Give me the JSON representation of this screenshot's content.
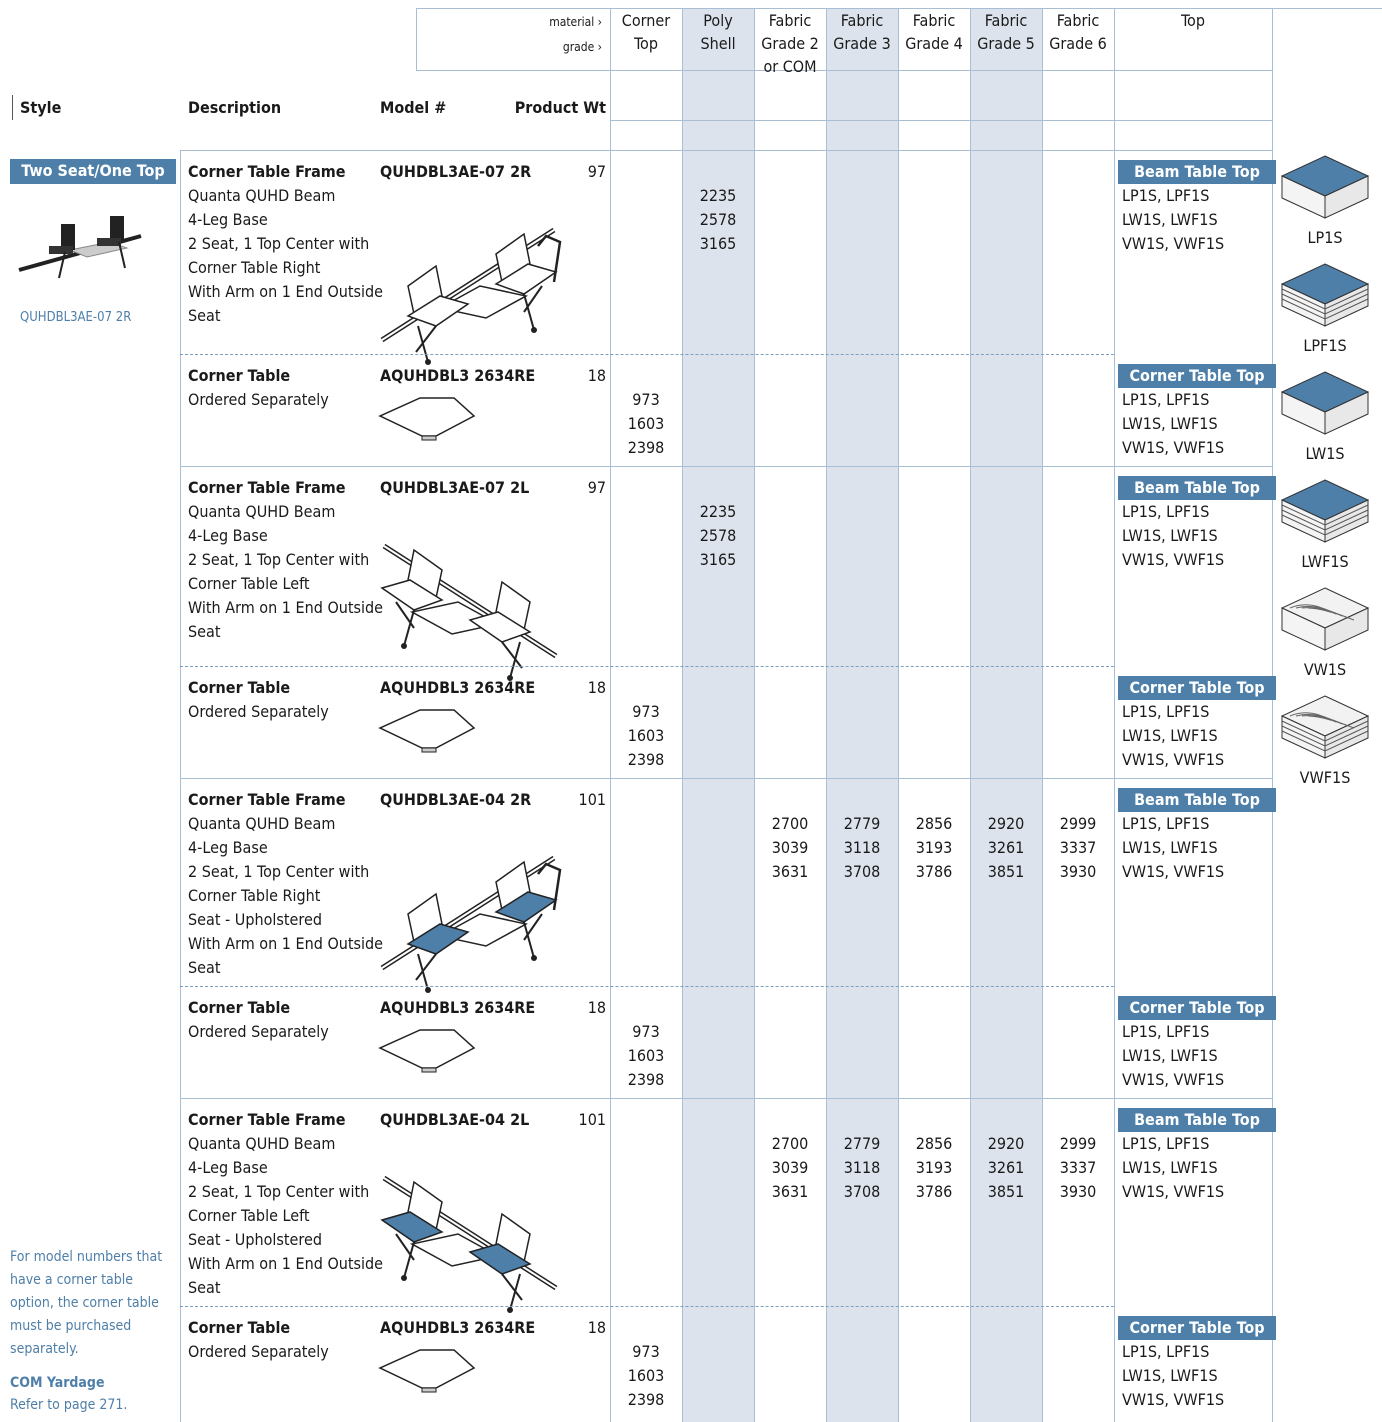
{
  "header": {
    "material_label": "material ›",
    "grade_label": "grade ›",
    "columns": [
      "Corner Top",
      "Poly Shell",
      "Fabric Grade 2 or COM",
      "Fabric Grade 3",
      "Fabric Grade 4",
      "Fabric Grade 5",
      "Fabric Grade 6",
      "Top"
    ]
  },
  "table": {
    "headings": [
      "Style",
      "Description",
      "Model #",
      "Product Wt"
    ],
    "rows": [
      {
        "title": "Corner Table Frame",
        "model": "QUHDBL3AE-07 2R",
        "weight": 97,
        "lines": [
          "Quanta QUHD Beam",
          "4-Leg Base",
          "2 Seat, 1 Top Center with",
          "Corner Table Right",
          "With Arm on 1 End Outside",
          "Seat"
        ],
        "prices": [
          null,
          [
            2235,
            2578,
            3165
          ],
          null,
          null,
          null,
          null,
          null
        ],
        "top_label": "Beam Table Top",
        "top_options": [
          "LP1S, LPF1S",
          "LW1S, LWF1S",
          "VW1S, VWF1S"
        ]
      },
      {
        "title": "Corner Table",
        "model": "AQUHDBL3 2634RE",
        "weight": 18,
        "lines": [
          "Ordered Separately"
        ],
        "prices": [
          [
            973,
            1603,
            2398
          ],
          null,
          null,
          null,
          null,
          null,
          null
        ],
        "top_label": "Corner Table Top",
        "top_options": [
          "LP1S, LPF1S",
          "LW1S, LWF1S",
          "VW1S, VWF1S"
        ]
      },
      {
        "title": "Corner Table Frame",
        "model": "QUHDBL3AE-07 2L",
        "weight": 97,
        "lines": [
          "Quanta QUHD Beam",
          "4-Leg Base",
          "2 Seat, 1 Top Center with",
          "Corner Table Left",
          "With Arm on 1 End Outside",
          "Seat"
        ],
        "prices": [
          null,
          [
            2235,
            2578,
            3165
          ],
          null,
          null,
          null,
          null,
          null
        ],
        "top_label": "Beam Table Top",
        "top_options": [
          "LP1S, LPF1S",
          "LW1S, LWF1S",
          "VW1S, VWF1S"
        ]
      },
      {
        "title": "Corner Table",
        "model": "AQUHDBL3 2634RE",
        "weight": 18,
        "lines": [
          "Ordered Separately"
        ],
        "prices": [
          [
            973,
            1603,
            2398
          ],
          null,
          null,
          null,
          null,
          null,
          null
        ],
        "top_label": "Corner Table Top",
        "top_options": [
          "LP1S, LPF1S",
          "LW1S, LWF1S",
          "VW1S, VWF1S"
        ]
      },
      {
        "title": "Corner Table Frame",
        "model": "QUHDBL3AE-04 2R",
        "weight": 101,
        "lines": [
          "Quanta QUHD Beam",
          "4-Leg Base",
          "2 Seat, 1 Top Center with",
          "Corner Table Right",
          "Seat - Upholstered",
          "With Arm on 1 End Outside",
          "Seat"
        ],
        "prices": [
          null,
          null,
          [
            2700,
            3039,
            3631
          ],
          [
            2779,
            3118,
            3708
          ],
          [
            2856,
            3193,
            3786
          ],
          [
            2920,
            3261,
            3851
          ],
          [
            2999,
            3337,
            3930
          ]
        ],
        "top_label": "Beam Table Top",
        "top_options": [
          "LP1S, LPF1S",
          "LW1S, LWF1S",
          "VW1S, VWF1S"
        ]
      },
      {
        "title": "Corner Table",
        "model": "AQUHDBL3 2634RE",
        "weight": 18,
        "lines": [
          "Ordered Separately"
        ],
        "prices": [
          [
            973,
            1603,
            2398
          ],
          null,
          null,
          null,
          null,
          null,
          null
        ],
        "top_label": "Corner Table Top",
        "top_options": [
          "LP1S, LPF1S",
          "LW1S, LWF1S",
          "VW1S, VWF1S"
        ]
      },
      {
        "title": "Corner Table Frame",
        "model": "QUHDBL3AE-04 2L",
        "weight": 101,
        "lines": [
          "Quanta QUHD Beam",
          "4-Leg Base",
          "2 Seat, 1 Top Center with",
          "Corner Table Left",
          "Seat - Upholstered",
          "With Arm on 1 End Outside",
          "Seat"
        ],
        "prices": [
          null,
          null,
          [
            2700,
            3039,
            3631
          ],
          [
            2779,
            3118,
            3708
          ],
          [
            2856,
            3193,
            3786
          ],
          [
            2920,
            3261,
            3851
          ],
          [
            2999,
            3337,
            3930
          ]
        ],
        "top_label": "Beam Table Top",
        "top_options": [
          "LP1S, LPF1S",
          "LW1S, LWF1S",
          "VW1S, VWF1S"
        ]
      },
      {
        "title": "Corner Table",
        "model": "AQUHDBL3 2634RE",
        "weight": 18,
        "lines": [
          "Ordered Separately"
        ],
        "prices": [
          [
            973,
            1603,
            2398
          ],
          null,
          null,
          null,
          null,
          null,
          null
        ],
        "top_label": "Corner Table Top",
        "top_options": [
          "LP1S, LPF1S",
          "LW1S, LWF1S",
          "VW1S, VWF1S"
        ]
      }
    ]
  },
  "sidebar": {
    "style": "Two Seat/One Top",
    "image_caption": "QUHDBL3AE-07 2R",
    "note": "For model numbers that have a corner table option, the corner table must be purchased separately.",
    "com_title": "COM Yardage",
    "com_text": "Refer to page 271."
  },
  "swatches": [
    "LP1S",
    "LPF1S",
    "LW1S",
    "LWF1S",
    "VW1S",
    "VWF1S"
  ]
}
